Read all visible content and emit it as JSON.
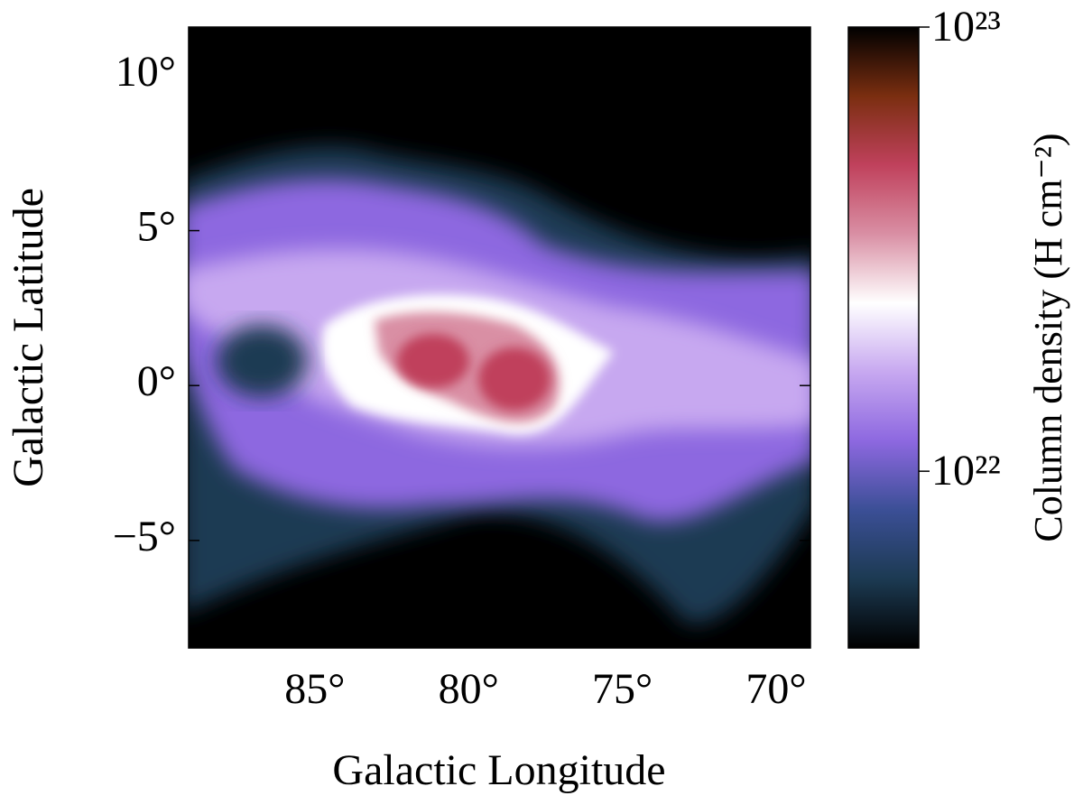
{
  "chart_data": {
    "type": "image",
    "xlabel": "Galactic Longitude",
    "ylabel": "Galactic Latitude",
    "xlim": [
      88.87,
      68.65
    ],
    "ylim": [
      -8.47,
      11.57
    ],
    "xticks": [
      {
        "value": 85,
        "label": "85°"
      },
      {
        "value": 80,
        "label": "80°"
      },
      {
        "value": 75,
        "label": "75°"
      },
      {
        "value": 70,
        "label": "70°"
      }
    ],
    "yticks": [
      {
        "value": 10,
        "label": "10°"
      },
      {
        "value": 5,
        "label": "5°"
      },
      {
        "value": 0,
        "label": "0°"
      },
      {
        "value": -5,
        "label": "−5°"
      }
    ],
    "colorbar": {
      "label": "Column density (H cm⁻²)",
      "log_scale": true,
      "clim": [
        4e+21,
        1e+23
      ],
      "ticks": [
        {
          "value": 1e+22,
          "label": "10²²"
        },
        {
          "value": 1e+23,
          "label": "10²³"
        }
      ],
      "colormap": [
        "#000000",
        "#1c3a52",
        "#3b4f96",
        "#8d68e0",
        "#c7a8f0",
        "#ffffff",
        "#d98fa4",
        "#c0415c",
        "#7a2e10",
        "#000000"
      ]
    }
  }
}
